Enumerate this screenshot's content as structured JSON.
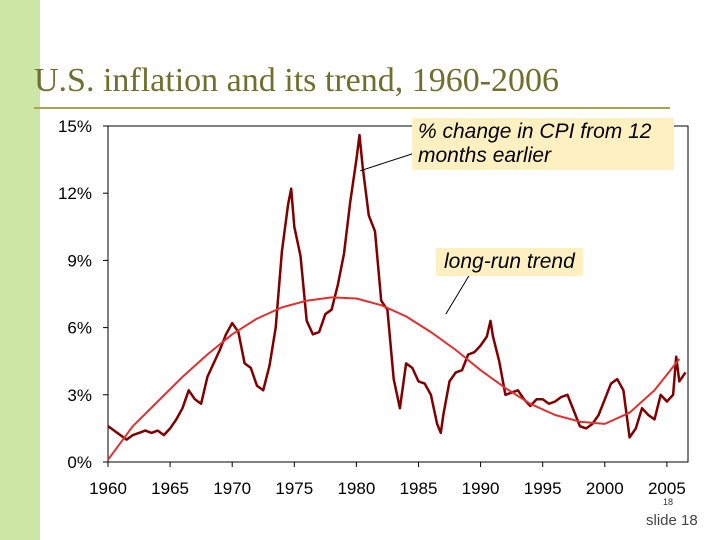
{
  "slide": {
    "title": "U.S. inflation and its trend, 1960-2006",
    "page_number": "18",
    "slide_label": "slide 18",
    "background_accent": "#cce6a6",
    "title_color": "#6f6f2e"
  },
  "chart_data": {
    "type": "line",
    "title": "",
    "xlabel": "",
    "ylabel": "",
    "xlim": [
      1960,
      2006.7
    ],
    "ylim": [
      0,
      15
    ],
    "x_ticks": [
      1960,
      1965,
      1970,
      1975,
      1980,
      1985,
      1990,
      1995,
      2000,
      2005
    ],
    "x_tick_labels": [
      "1960",
      "1965",
      "1970",
      "1975",
      "1980",
      "1985",
      "1990",
      "1995",
      "2000",
      "2005"
    ],
    "y_ticks": [
      0,
      3,
      6,
      9,
      12,
      15
    ],
    "y_tick_labels": [
      "0%",
      "3%",
      "6%",
      "9%",
      "12%",
      "15%"
    ],
    "grid": false,
    "series": [
      {
        "name": "% change in CPI from 12 months earlier",
        "color": "#800000",
        "x": [
          1960.0,
          1960.25,
          1960.5,
          1960.75,
          1961.0,
          1961.5,
          1962.0,
          1962.5,
          1963.0,
          1963.5,
          1964.0,
          1964.5,
          1965.0,
          1965.5,
          1966.0,
          1966.5,
          1967.0,
          1967.5,
          1968.0,
          1968.5,
          1969.0,
          1969.5,
          1970.0,
          1970.5,
          1971.0,
          1971.5,
          1972.0,
          1972.5,
          1973.0,
          1973.5,
          1974.0,
          1974.5,
          1974.75,
          1975.0,
          1975.5,
          1976.0,
          1976.5,
          1977.0,
          1977.5,
          1978.0,
          1978.5,
          1979.0,
          1979.5,
          1980.0,
          1980.25,
          1980.5,
          1981.0,
          1981.5,
          1982.0,
          1982.5,
          1983.0,
          1983.5,
          1984.0,
          1984.5,
          1985.0,
          1985.5,
          1986.0,
          1986.5,
          1986.8,
          1987.0,
          1987.5,
          1988.0,
          1988.5,
          1989.0,
          1989.5,
          1990.0,
          1990.5,
          1990.8,
          1991.0,
          1991.5,
          1992.0,
          1992.5,
          1993.0,
          1993.5,
          1994.0,
          1994.5,
          1995.0,
          1995.5,
          1996.0,
          1996.5,
          1997.0,
          1997.5,
          1998.0,
          1998.5,
          1999.0,
          1999.5,
          2000.0,
          2000.5,
          2001.0,
          2001.5,
          2002.0,
          2002.5,
          2003.0,
          2003.5,
          2004.0,
          2004.5,
          2005.0,
          2005.5,
          2005.75,
          2006.0,
          2006.5
        ],
        "values": [
          1.6,
          1.5,
          1.4,
          1.3,
          1.2,
          1.0,
          1.2,
          1.3,
          1.4,
          1.3,
          1.4,
          1.2,
          1.5,
          1.9,
          2.4,
          3.2,
          2.8,
          2.6,
          3.8,
          4.4,
          5.0,
          5.7,
          6.2,
          5.8,
          4.4,
          4.2,
          3.4,
          3.2,
          4.3,
          6.0,
          9.4,
          11.5,
          12.2,
          10.5,
          9.2,
          6.3,
          5.7,
          5.8,
          6.6,
          6.8,
          7.9,
          9.3,
          11.6,
          13.5,
          14.6,
          13.2,
          11.0,
          10.3,
          7.2,
          6.8,
          3.7,
          2.4,
          4.4,
          4.2,
          3.6,
          3.5,
          3.0,
          1.7,
          1.3,
          2.1,
          3.6,
          4.0,
          4.1,
          4.8,
          4.9,
          5.2,
          5.6,
          6.3,
          5.6,
          4.5,
          3.0,
          3.1,
          3.2,
          2.8,
          2.5,
          2.8,
          2.8,
          2.6,
          2.7,
          2.9,
          3.0,
          2.3,
          1.6,
          1.5,
          1.7,
          2.1,
          2.8,
          3.5,
          3.7,
          3.2,
          1.1,
          1.5,
          2.4,
          2.1,
          1.9,
          3.0,
          2.7,
          3.0,
          4.7,
          3.6,
          4.0
        ]
      },
      {
        "name": "long-run trend",
        "color": "#e03030",
        "x": [
          1960,
          1962,
          1964,
          1966,
          1968,
          1970,
          1972,
          1974,
          1976,
          1978,
          1980,
          1982,
          1984,
          1986,
          1988,
          1990,
          1992,
          1994,
          1996,
          1998,
          2000,
          2002,
          2004,
          2006
        ],
        "values": [
          0.1,
          1.6,
          2.7,
          3.8,
          4.8,
          5.7,
          6.4,
          6.9,
          7.2,
          7.35,
          7.3,
          7.0,
          6.5,
          5.8,
          5.0,
          4.1,
          3.3,
          2.6,
          2.1,
          1.8,
          1.7,
          2.2,
          3.2,
          4.6
        ]
      }
    ],
    "annotations": [
      {
        "text": "% change in CPI from 12 months earlier",
        "points_to_x": 1980.3,
        "points_to_y": 13.0
      },
      {
        "text": "long-run trend",
        "points_to_x": 1987.2,
        "points_to_y": 6.6
      }
    ]
  }
}
